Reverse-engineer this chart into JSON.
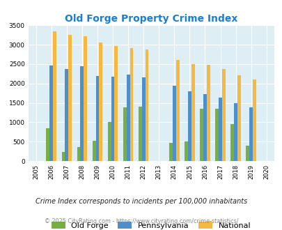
{
  "title": "Old Forge Property Crime Index",
  "years": [
    2005,
    2006,
    2007,
    2008,
    2009,
    2010,
    2011,
    2012,
    2013,
    2014,
    2015,
    2016,
    2017,
    2018,
    2019,
    2020
  ],
  "old_forge": [
    null,
    850,
    230,
    360,
    530,
    1000,
    1380,
    1410,
    null,
    460,
    510,
    1340,
    1340,
    950,
    400,
    null
  ],
  "pennsylvania": [
    null,
    2470,
    2380,
    2440,
    2200,
    2180,
    2230,
    2155,
    null,
    1940,
    1800,
    1720,
    1640,
    1490,
    1390,
    null
  ],
  "national": [
    null,
    3340,
    3250,
    3210,
    3050,
    2960,
    2920,
    2870,
    null,
    2600,
    2500,
    2480,
    2380,
    2210,
    2110,
    null
  ],
  "old_forge_color": "#76b041",
  "pennsylvania_color": "#4d8fcb",
  "national_color": "#f5b942",
  "bg_color": "#ddeef5",
  "grid_color": "#ffffff",
  "ylim": [
    0,
    3500
  ],
  "yticks": [
    0,
    500,
    1000,
    1500,
    2000,
    2500,
    3000,
    3500
  ],
  "legend_labels": [
    "Old Forge",
    "Pennsylvania",
    "National"
  ],
  "footnote1": "Crime Index corresponds to incidents per 100,000 inhabitants",
  "footnote2": "© 2025 CityRating.com - https://www.cityrating.com/crime-statistics/",
  "title_color": "#1a7fd4",
  "footnote1_color": "#222222",
  "footnote2_color": "#888888"
}
